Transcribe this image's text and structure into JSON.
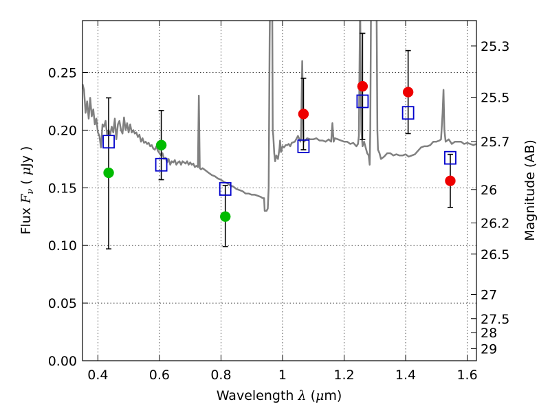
{
  "chart_data": {
    "type": "scatter",
    "xlabel": {
      "prefix": "Wavelength  ",
      "symbol": "λ",
      "open": " (",
      "unit_symbol": "μ",
      "unit": "m)"
    },
    "ylabel": {
      "prefix": "Flux  ",
      "symbol": "F",
      "subscript": "ν",
      "open": "  ( ",
      "unit_symbol": "μ",
      "unit": "Jy )"
    },
    "y2label": "Magnitude (AB)",
    "xlim": [
      0.35,
      1.63
    ],
    "ylim": [
      0.0,
      0.295
    ],
    "grid": true,
    "x_ticks": [
      {
        "value": 0.4,
        "label": "0.4"
      },
      {
        "value": 0.6,
        "label": "0.6"
      },
      {
        "value": 0.8,
        "label": "0.8"
      },
      {
        "value": 1.0,
        "label": "1"
      },
      {
        "value": 1.2,
        "label": "1.2"
      },
      {
        "value": 1.4,
        "label": "1.4"
      },
      {
        "value": 1.6,
        "label": "1.6"
      }
    ],
    "y_ticks": [
      {
        "value": 0.0,
        "label": "0.00"
      },
      {
        "value": 0.05,
        "label": "0.05"
      },
      {
        "value": 0.1,
        "label": "0.10"
      },
      {
        "value": 0.15,
        "label": "0.15"
      },
      {
        "value": 0.2,
        "label": "0.20"
      },
      {
        "value": 0.25,
        "label": "0.25"
      }
    ],
    "y2_ticks": [
      {
        "flux": 0.273,
        "label": "25.3"
      },
      {
        "flux": 0.2285,
        "label": "25.5"
      },
      {
        "flux": 0.19,
        "label": "25.7"
      },
      {
        "flux": 0.1485,
        "label": "26"
      },
      {
        "flux": 0.1195,
        "label": "26.2"
      },
      {
        "flux": 0.0925,
        "label": "26.5"
      },
      {
        "flux": 0.0575,
        "label": "27"
      },
      {
        "flux": 0.0365,
        "label": "27.5"
      },
      {
        "flux": 0.0245,
        "label": "28"
      },
      {
        "flux": 0.0105,
        "label": "29"
      }
    ],
    "model_spectrum": {
      "color": "#808080",
      "points": [
        [
          0.35,
          0.24
        ],
        [
          0.355,
          0.235
        ],
        [
          0.36,
          0.215
        ],
        [
          0.365,
          0.225
        ],
        [
          0.37,
          0.21
        ],
        [
          0.375,
          0.228
        ],
        [
          0.38,
          0.212
        ],
        [
          0.385,
          0.218
        ],
        [
          0.39,
          0.205
        ],
        [
          0.395,
          0.21
        ],
        [
          0.4,
          0.198
        ],
        [
          0.405,
          0.195
        ],
        [
          0.41,
          0.185
        ],
        [
          0.415,
          0.205
        ],
        [
          0.42,
          0.203
        ],
        [
          0.425,
          0.208
        ],
        [
          0.43,
          0.196
        ],
        [
          0.435,
          0.2
        ],
        [
          0.44,
          0.196
        ],
        [
          0.445,
          0.203
        ],
        [
          0.45,
          0.198
        ],
        [
          0.455,
          0.21
        ],
        [
          0.46,
          0.192
        ],
        [
          0.465,
          0.205
        ],
        [
          0.47,
          0.208
        ],
        [
          0.475,
          0.2
        ],
        [
          0.48,
          0.197
        ],
        [
          0.485,
          0.211
        ],
        [
          0.49,
          0.2
        ],
        [
          0.495,
          0.206
        ],
        [
          0.5,
          0.198
        ],
        [
          0.505,
          0.205
        ],
        [
          0.51,
          0.198
        ],
        [
          0.515,
          0.2
        ],
        [
          0.52,
          0.197
        ],
        [
          0.525,
          0.198
        ],
        [
          0.53,
          0.194
        ],
        [
          0.535,
          0.196
        ],
        [
          0.54,
          0.19
        ],
        [
          0.545,
          0.193
        ],
        [
          0.55,
          0.189
        ],
        [
          0.555,
          0.19
        ],
        [
          0.56,
          0.188
        ],
        [
          0.565,
          0.189
        ],
        [
          0.57,
          0.186
        ],
        [
          0.575,
          0.187
        ],
        [
          0.58,
          0.184
        ],
        [
          0.585,
          0.183
        ],
        [
          0.59,
          0.186
        ],
        [
          0.595,
          0.182
        ],
        [
          0.6,
          0.18
        ],
        [
          0.605,
          0.178
        ],
        [
          0.61,
          0.18
        ],
        [
          0.615,
          0.175
        ],
        [
          0.62,
          0.176
        ],
        [
          0.625,
          0.172
        ],
        [
          0.63,
          0.175
        ],
        [
          0.635,
          0.17
        ],
        [
          0.64,
          0.173
        ],
        [
          0.645,
          0.172
        ],
        [
          0.65,
          0.174
        ],
        [
          0.655,
          0.17
        ],
        [
          0.66,
          0.172
        ],
        [
          0.665,
          0.173
        ],
        [
          0.67,
          0.17
        ],
        [
          0.675,
          0.173
        ],
        [
          0.68,
          0.172
        ],
        [
          0.685,
          0.171
        ],
        [
          0.69,
          0.173
        ],
        [
          0.695,
          0.17
        ],
        [
          0.7,
          0.172
        ],
        [
          0.705,
          0.17
        ],
        [
          0.71,
          0.171
        ],
        [
          0.715,
          0.168
        ],
        [
          0.72,
          0.169
        ],
        [
          0.725,
          0.168
        ],
        [
          0.728,
          0.23
        ],
        [
          0.731,
          0.167
        ],
        [
          0.735,
          0.166
        ],
        [
          0.74,
          0.167
        ],
        [
          0.75,
          0.165
        ],
        [
          0.76,
          0.163
        ],
        [
          0.77,
          0.161
        ],
        [
          0.78,
          0.16
        ],
        [
          0.79,
          0.158
        ],
        [
          0.8,
          0.157
        ],
        [
          0.81,
          0.155
        ],
        [
          0.82,
          0.154
        ],
        [
          0.83,
          0.152
        ],
        [
          0.84,
          0.151
        ],
        [
          0.85,
          0.149
        ],
        [
          0.86,
          0.148
        ],
        [
          0.87,
          0.147
        ],
        [
          0.88,
          0.145
        ],
        [
          0.89,
          0.145
        ],
        [
          0.9,
          0.144
        ],
        [
          0.91,
          0.144
        ],
        [
          0.92,
          0.143
        ],
        [
          0.93,
          0.142
        ],
        [
          0.935,
          0.141
        ],
        [
          0.94,
          0.141
        ],
        [
          0.942,
          0.13
        ],
        [
          0.948,
          0.13
        ],
        [
          0.952,
          0.132
        ],
        [
          0.955,
          0.15
        ],
        [
          0.958,
          0.28
        ],
        [
          0.96,
          0.33
        ],
        [
          0.966,
          0.33
        ],
        [
          0.968,
          0.2
        ],
        [
          0.97,
          0.195
        ],
        [
          0.973,
          0.18
        ],
        [
          0.976,
          0.173
        ],
        [
          0.98,
          0.178
        ],
        [
          0.985,
          0.175
        ],
        [
          0.99,
          0.184
        ],
        [
          0.992,
          0.191
        ],
        [
          0.995,
          0.181
        ],
        [
          1.0,
          0.186
        ],
        [
          1.005,
          0.185
        ],
        [
          1.01,
          0.187
        ],
        [
          1.015,
          0.187
        ],
        [
          1.02,
          0.188
        ],
        [
          1.025,
          0.186
        ],
        [
          1.03,
          0.189
        ],
        [
          1.04,
          0.19
        ],
        [
          1.05,
          0.195
        ],
        [
          1.058,
          0.19
        ],
        [
          1.06,
          0.193
        ],
        [
          1.064,
          0.26
        ],
        [
          1.068,
          0.19
        ],
        [
          1.07,
          0.19
        ],
        [
          1.08,
          0.193
        ],
        [
          1.09,
          0.192
        ],
        [
          1.1,
          0.192
        ],
        [
          1.11,
          0.193
        ],
        [
          1.12,
          0.191
        ],
        [
          1.13,
          0.191
        ],
        [
          1.14,
          0.19
        ],
        [
          1.15,
          0.192
        ],
        [
          1.158,
          0.19
        ],
        [
          1.162,
          0.206
        ],
        [
          1.166,
          0.19
        ],
        [
          1.17,
          0.193
        ],
        [
          1.18,
          0.192
        ],
        [
          1.19,
          0.191
        ],
        [
          1.2,
          0.19
        ],
        [
          1.21,
          0.19
        ],
        [
          1.22,
          0.188
        ],
        [
          1.23,
          0.189
        ],
        [
          1.24,
          0.186
        ],
        [
          1.245,
          0.188
        ],
        [
          1.248,
          0.195
        ],
        [
          1.252,
          0.31
        ],
        [
          1.256,
          0.2
        ],
        [
          1.26,
          0.186
        ],
        [
          1.265,
          0.19
        ],
        [
          1.27,
          0.185
        ],
        [
          1.275,
          0.18
        ],
        [
          1.28,
          0.178
        ],
        [
          1.283,
          0.17
        ],
        [
          1.285,
          0.2
        ],
        [
          1.288,
          0.33
        ],
        [
          1.305,
          0.33
        ],
        [
          1.308,
          0.2
        ],
        [
          1.31,
          0.183
        ],
        [
          1.315,
          0.18
        ],
        [
          1.32,
          0.175
        ],
        [
          1.33,
          0.177
        ],
        [
          1.34,
          0.18
        ],
        [
          1.35,
          0.18
        ],
        [
          1.36,
          0.178
        ],
        [
          1.37,
          0.179
        ],
        [
          1.38,
          0.178
        ],
        [
          1.39,
          0.178
        ],
        [
          1.4,
          0.179
        ],
        [
          1.41,
          0.177
        ],
        [
          1.42,
          0.178
        ],
        [
          1.43,
          0.179
        ],
        [
          1.44,
          0.182
        ],
        [
          1.45,
          0.185
        ],
        [
          1.46,
          0.186
        ],
        [
          1.47,
          0.186
        ],
        [
          1.48,
          0.187
        ],
        [
          1.49,
          0.19
        ],
        [
          1.5,
          0.19
        ],
        [
          1.51,
          0.191
        ],
        [
          1.515,
          0.192
        ],
        [
          1.52,
          0.215
        ],
        [
          1.523,
          0.235
        ],
        [
          1.526,
          0.2
        ],
        [
          1.53,
          0.19
        ],
        [
          1.54,
          0.192
        ],
        [
          1.55,
          0.188
        ],
        [
          1.56,
          0.19
        ],
        [
          1.57,
          0.19
        ],
        [
          1.58,
          0.19
        ],
        [
          1.59,
          0.188
        ],
        [
          1.6,
          0.189
        ],
        [
          1.61,
          0.188
        ],
        [
          1.62,
          0.187
        ],
        [
          1.63,
          0.188
        ]
      ]
    },
    "model_photometry": {
      "marker": "open-square",
      "color": "#0000cc",
      "points": [
        {
          "x": 0.435,
          "y": 0.19
        },
        {
          "x": 0.606,
          "y": 0.17
        },
        {
          "x": 0.814,
          "y": 0.149
        },
        {
          "x": 1.068,
          "y": 0.186
        },
        {
          "x": 1.26,
          "y": 0.225
        },
        {
          "x": 1.408,
          "y": 0.215
        },
        {
          "x": 1.545,
          "y": 0.176
        }
      ]
    },
    "observed": {
      "marker": "filled-circle",
      "points": [
        {
          "x": 0.435,
          "y": 0.163,
          "err_lo": 0.097,
          "err_hi": 0.228,
          "color": "#00bb00"
        },
        {
          "x": 0.606,
          "y": 0.187,
          "err_lo": 0.157,
          "err_hi": 0.217,
          "color": "#00bb00"
        },
        {
          "x": 0.814,
          "y": 0.125,
          "err_lo": 0.099,
          "err_hi": 0.152,
          "color": "#00bb00"
        },
        {
          "x": 1.068,
          "y": 0.214,
          "err_lo": 0.183,
          "err_hi": 0.245,
          "color": "#ee0000"
        },
        {
          "x": 1.26,
          "y": 0.238,
          "err_lo": 0.192,
          "err_hi": 0.284,
          "color": "#ee0000"
        },
        {
          "x": 1.408,
          "y": 0.233,
          "err_lo": 0.197,
          "err_hi": 0.269,
          "color": "#ee0000"
        },
        {
          "x": 1.545,
          "y": 0.156,
          "err_lo": 0.133,
          "err_hi": 0.179,
          "color": "#ee0000"
        }
      ]
    }
  }
}
